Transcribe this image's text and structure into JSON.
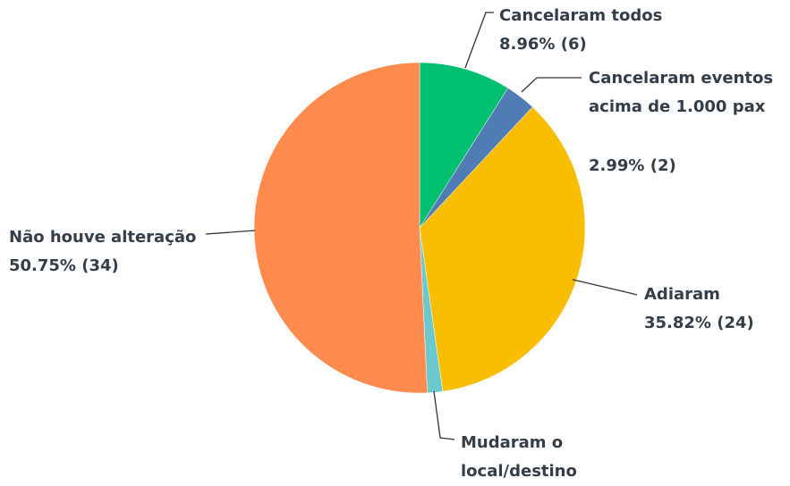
{
  "chart_data": {
    "type": "pie",
    "categories": [
      "Cancelaram todos",
      "Cancelaram eventos acima de 1.000 pax",
      "Adiaram",
      "Mudaram o local/destino",
      "Não houve alteração"
    ],
    "values": [
      8.96,
      2.99,
      35.82,
      1.49,
      50.75
    ],
    "value_labels": [
      "8.96% (6)",
      "2.99% (2)",
      "35.82% (24)",
      null,
      "50.75% (34)"
    ],
    "colors": [
      "#00bf6f",
      "#507cb6",
      "#f9be00",
      "#6bc8cd",
      "#ff8b4f"
    ]
  }
}
